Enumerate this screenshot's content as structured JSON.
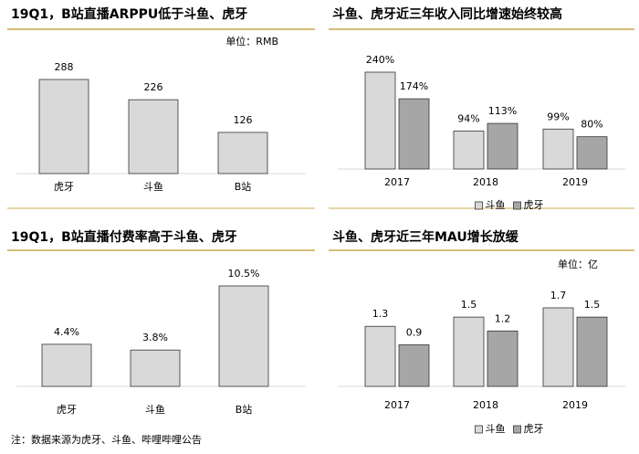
{
  "note": "注：数据来源为虎牙、斗鱼、哔哩哔哩公告",
  "chart_data": [
    {
      "type": "bar",
      "title": "19Q1，B站直播ARPPU低于斗鱼、虎牙",
      "unit": "单位：RMB",
      "categories": [
        "虎牙",
        "斗鱼",
        "B站"
      ],
      "values": [
        288,
        226,
        126
      ],
      "color": "#d9d9d9"
    },
    {
      "type": "grouped-bar",
      "title": "斗鱼、虎牙近三年收入同比增速始终较高",
      "categories": [
        "2017",
        "2018",
        "2019"
      ],
      "series": [
        {
          "name": "斗鱼",
          "color": "#d9d9d9",
          "values": [
            240,
            94,
            99
          ],
          "value_labels": [
            "240%",
            "94%",
            "99%"
          ]
        },
        {
          "name": "虎牙",
          "color": "#a6a6a6",
          "values": [
            174,
            113,
            80
          ],
          "value_labels": [
            "174%",
            "113%",
            "80%"
          ]
        }
      ]
    },
    {
      "type": "bar",
      "title": "19Q1，B站直播付费率高于斗鱼、虎牙",
      "categories": [
        "虎牙",
        "斗鱼",
        "B站"
      ],
      "values": [
        4.4,
        3.8,
        10.5
      ],
      "value_labels": [
        "4.4%",
        "3.8%",
        "10.5%"
      ],
      "color": "#d9d9d9"
    },
    {
      "type": "grouped-bar",
      "title": "斗鱼、虎牙近三年MAU增长放缓",
      "unit": "单位：亿",
      "categories": [
        "2017",
        "2018",
        "2019"
      ],
      "series": [
        {
          "name": "斗鱼",
          "color": "#d9d9d9",
          "values": [
            1.3,
            1.5,
            1.7
          ]
        },
        {
          "name": "虎牙",
          "color": "#a6a6a6",
          "values": [
            0.9,
            1.2,
            1.5
          ]
        }
      ]
    }
  ]
}
